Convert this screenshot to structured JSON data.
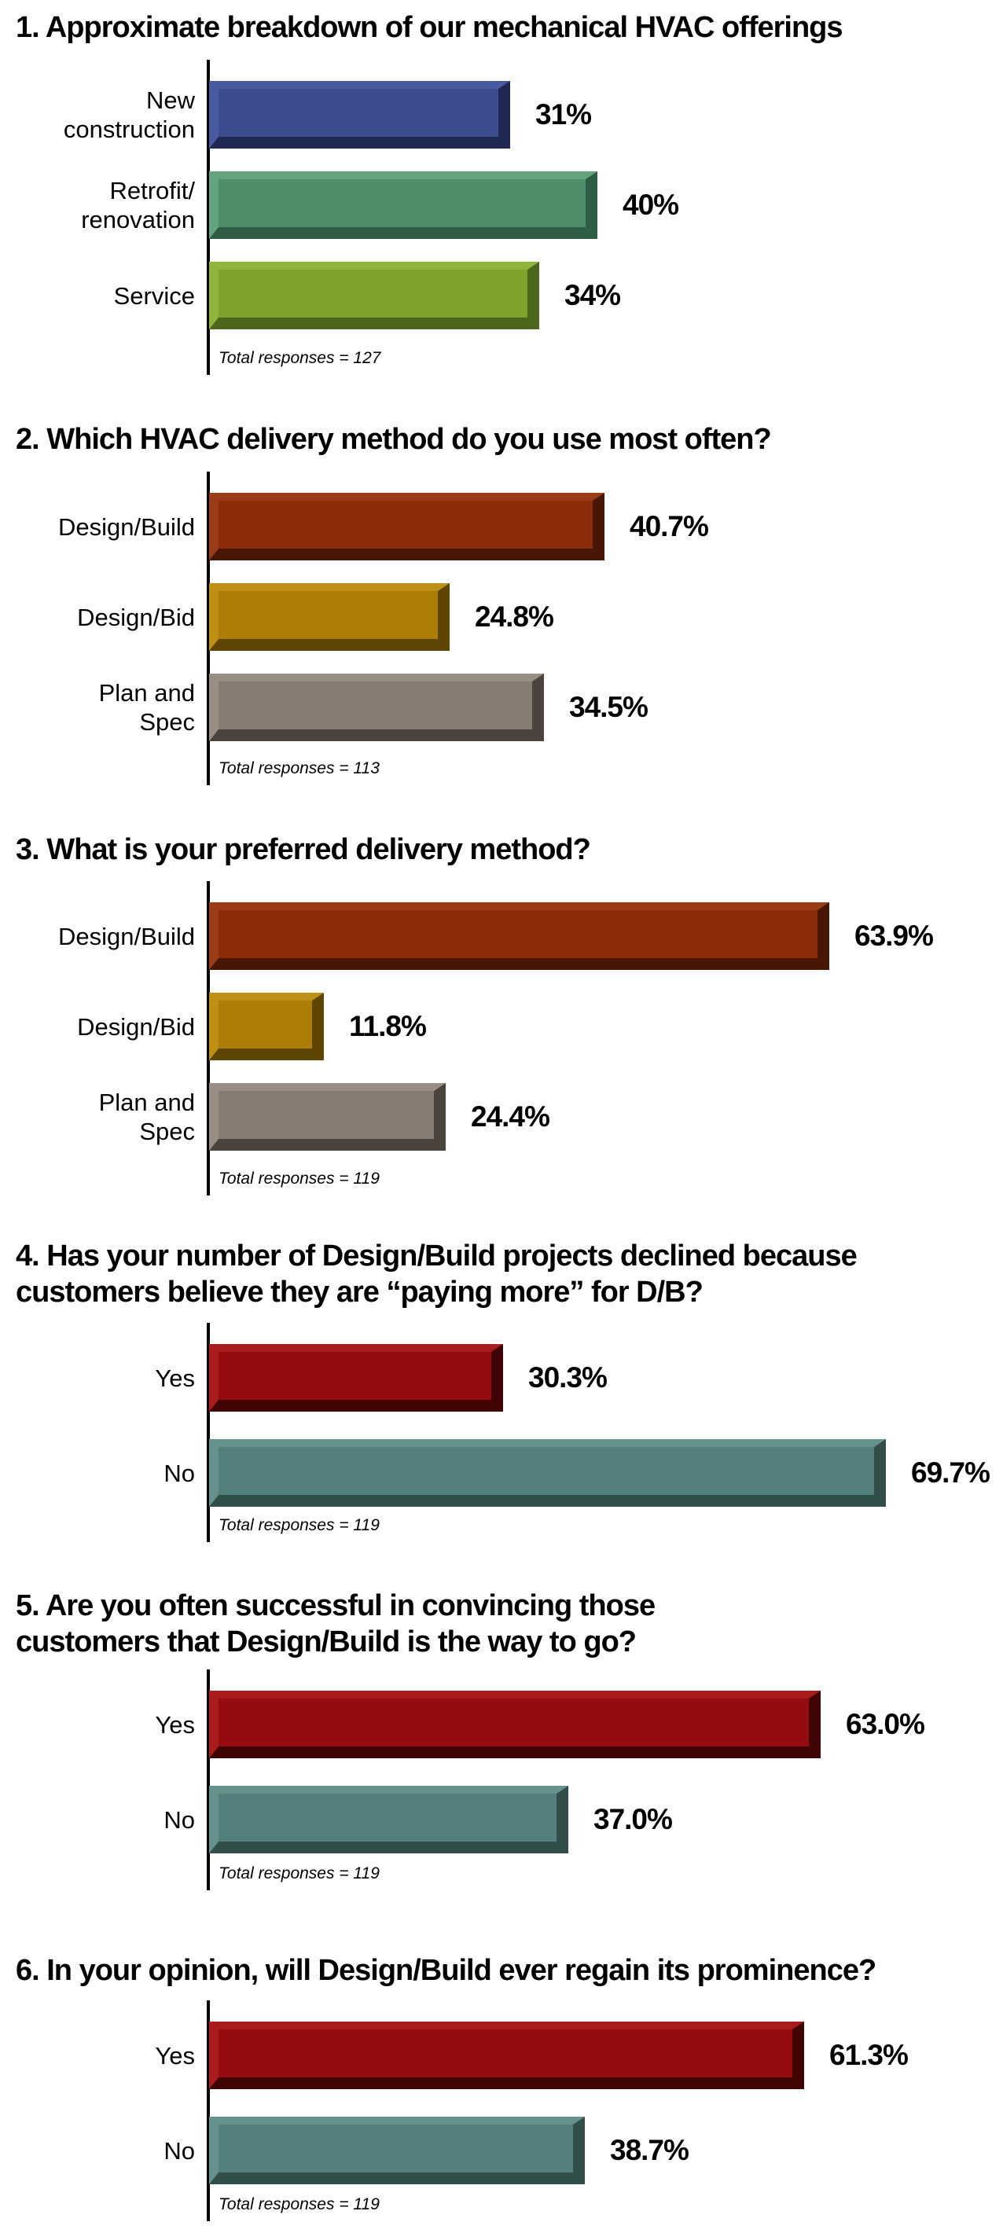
{
  "page": {
    "background": "#ffffff",
    "text_color": "#000000",
    "axis_color": "#000000"
  },
  "chart_data": [
    {
      "type": "bar",
      "orientation": "horizontal",
      "title_lines": [
        "1. Approximate breakdown of our mechanical HVAC offerings"
      ],
      "categories": [
        [
          "New",
          "construction"
        ],
        [
          "Retrofit/",
          "renovation"
        ],
        [
          "Service"
        ]
      ],
      "values": [
        31,
        40,
        34
      ],
      "value_labels": [
        "31%",
        "40%",
        "34%"
      ],
      "note": "Total responses = 127",
      "xlabel": "",
      "ylabel": "",
      "xlim": [
        0,
        100
      ],
      "unit": "percent",
      "grid": false,
      "legend": "none",
      "colors": [
        {
          "face": "#3C4C8E",
          "light": "#4A5AA0",
          "dark": "#1F2852"
        },
        {
          "face": "#4F8E69",
          "light": "#63A37D",
          "dark": "#2E5C45"
        },
        {
          "face": "#7EA32A",
          "light": "#90B53C",
          "dark": "#4C661B"
        }
      ]
    },
    {
      "type": "bar",
      "orientation": "horizontal",
      "title_lines": [
        "2. Which HVAC delivery method do you use most often?"
      ],
      "categories": [
        [
          "Design/Build"
        ],
        [
          "Design/Bid"
        ],
        [
          "Plan and",
          "Spec"
        ]
      ],
      "values": [
        40.7,
        24.8,
        34.5
      ],
      "value_labels": [
        "40.7%",
        "24.8%",
        "34.5%"
      ],
      "note": "Total responses = 113",
      "xlabel": "",
      "ylabel": "",
      "xlim": [
        0,
        100
      ],
      "unit": "percent",
      "grid": false,
      "legend": "none",
      "colors": [
        {
          "face": "#8B2D0B",
          "light": "#9A3C16",
          "dark": "#471605"
        },
        {
          "face": "#AC7E07",
          "light": "#BD9015",
          "dark": "#5E4503"
        },
        {
          "face": "#877C73",
          "light": "#998E84",
          "dark": "#4B443D"
        }
      ]
    },
    {
      "type": "bar",
      "orientation": "horizontal",
      "title_lines": [
        "3. What is your preferred delivery method?"
      ],
      "categories": [
        [
          "Design/Build"
        ],
        [
          "Design/Bid"
        ],
        [
          "Plan and",
          "Spec"
        ]
      ],
      "values": [
        63.9,
        11.8,
        24.4
      ],
      "value_labels": [
        "63.9%",
        "11.8%",
        "24.4%"
      ],
      "note": "Total responses = 119",
      "xlabel": "",
      "ylabel": "",
      "xlim": [
        0,
        100
      ],
      "unit": "percent",
      "grid": false,
      "legend": "none",
      "colors": [
        {
          "face": "#8B2D0B",
          "light": "#9A3C16",
          "dark": "#471605"
        },
        {
          "face": "#AC7E07",
          "light": "#BD9015",
          "dark": "#5E4503"
        },
        {
          "face": "#877C73",
          "light": "#998E84",
          "dark": "#4B443D"
        }
      ]
    },
    {
      "type": "bar",
      "orientation": "horizontal",
      "title_lines": [
        "4. Has your number of Design/Build projects declined because",
        "customers believe they are “paying more” for D/B?"
      ],
      "categories": [
        [
          "Yes"
        ],
        [
          "No"
        ]
      ],
      "values": [
        30.3,
        69.7
      ],
      "value_labels": [
        "30.3%",
        "69.7%"
      ],
      "note": "Total responses = 119",
      "xlabel": "",
      "ylabel": "",
      "xlim": [
        0,
        100
      ],
      "unit": "percent",
      "grid": false,
      "legend": "none",
      "colors": [
        {
          "face": "#960B0F",
          "light": "#A81C1D",
          "dark": "#400405"
        },
        {
          "face": "#53807C",
          "light": "#67918C",
          "dark": "#314E4B"
        }
      ]
    },
    {
      "type": "bar",
      "orientation": "horizontal",
      "title_lines": [
        "5. Are you often successful in convincing those",
        "customers that Design/Build is the way to go?"
      ],
      "categories": [
        [
          "Yes"
        ],
        [
          "No"
        ]
      ],
      "values": [
        63.0,
        37.0
      ],
      "value_labels": [
        "63.0%",
        "37.0%"
      ],
      "note": "Total responses = 119",
      "xlabel": "",
      "ylabel": "",
      "xlim": [
        0,
        100
      ],
      "unit": "percent",
      "grid": false,
      "legend": "none",
      "colors": [
        {
          "face": "#960B0F",
          "light": "#A81C1D",
          "dark": "#400405"
        },
        {
          "face": "#53807C",
          "light": "#67918C",
          "dark": "#314E4B"
        }
      ]
    },
    {
      "type": "bar",
      "orientation": "horizontal",
      "title_lines": [
        "6. In your opinion, will Design/Build ever regain its prominence?"
      ],
      "categories": [
        [
          "Yes"
        ],
        [
          "No"
        ]
      ],
      "values": [
        61.3,
        38.7
      ],
      "value_labels": [
        "61.3%",
        "38.7%"
      ],
      "note": "Total responses = 119",
      "xlabel": "",
      "ylabel": "",
      "xlim": [
        0,
        100
      ],
      "unit": "percent",
      "grid": false,
      "legend": "none",
      "colors": [
        {
          "face": "#960B0F",
          "light": "#A81C1D",
          "dark": "#400405"
        },
        {
          "face": "#53807C",
          "light": "#67918C",
          "dark": "#314E4B"
        }
      ]
    }
  ]
}
